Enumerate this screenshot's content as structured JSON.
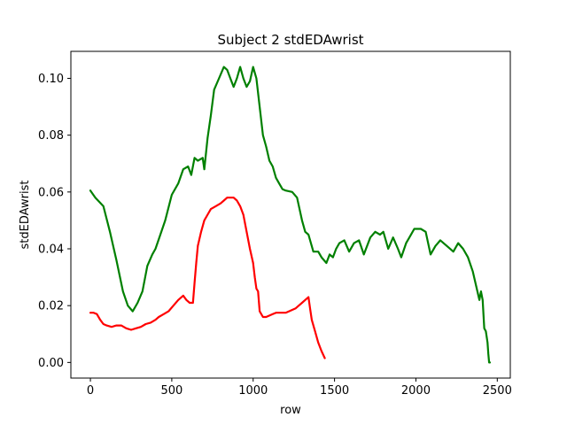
{
  "chart_data": {
    "type": "line",
    "title": "Subject 2 stdEDAwrist",
    "xlabel": "row",
    "ylabel": "stdEDAwrist",
    "xlim": [
      -120,
      2580
    ],
    "ylim": [
      -0.0055,
      0.1095
    ],
    "xticks": [
      0,
      500,
      1000,
      1500,
      2000,
      2500
    ],
    "xtick_labels": [
      "0",
      "500",
      "1000",
      "1500",
      "2000",
      "2500"
    ],
    "yticks": [
      0.0,
      0.02,
      0.04,
      0.06,
      0.08,
      0.1
    ],
    "ytick_labels": [
      "0.00",
      "0.02",
      "0.04",
      "0.06",
      "0.08",
      "0.10"
    ],
    "grid": false,
    "legend": "none",
    "series": [
      {
        "color": "#008000",
        "x": [
          0,
          30,
          80,
          120,
          160,
          200,
          230,
          260,
          290,
          320,
          350,
          380,
          400,
          430,
          460,
          500,
          540,
          570,
          600,
          620,
          640,
          660,
          690,
          700,
          720,
          740,
          760,
          790,
          820,
          840,
          860,
          880,
          900,
          920,
          940,
          960,
          980,
          1000,
          1020,
          1040,
          1060,
          1080,
          1100,
          1120,
          1140,
          1160,
          1180,
          1200,
          1240,
          1270,
          1300,
          1320,
          1340,
          1370,
          1400,
          1420,
          1450,
          1470,
          1490,
          1510,
          1530,
          1560,
          1590,
          1620,
          1650,
          1680,
          1720,
          1750,
          1780,
          1800,
          1830,
          1860,
          1890,
          1910,
          1940,
          1960,
          1990,
          2030,
          2060,
          2090,
          2120,
          2150,
          2190,
          2230,
          2260,
          2290,
          2320,
          2350,
          2370,
          2390,
          2400,
          2410,
          2420,
          2430,
          2440,
          2445,
          2450,
          2455
        ],
        "y": [
          0.0605,
          0.058,
          0.055,
          0.046,
          0.036,
          0.025,
          0.02,
          0.018,
          0.021,
          0.025,
          0.034,
          0.038,
          0.04,
          0.045,
          0.05,
          0.059,
          0.063,
          0.068,
          0.069,
          0.066,
          0.072,
          0.071,
          0.072,
          0.068,
          0.079,
          0.087,
          0.096,
          0.1,
          0.104,
          0.103,
          0.1,
          0.097,
          0.1,
          0.104,
          0.1,
          0.097,
          0.099,
          0.104,
          0.1,
          0.09,
          0.08,
          0.076,
          0.071,
          0.069,
          0.065,
          0.063,
          0.061,
          0.0605,
          0.06,
          0.058,
          0.05,
          0.046,
          0.045,
          0.039,
          0.039,
          0.037,
          0.035,
          0.038,
          0.037,
          0.04,
          0.042,
          0.043,
          0.039,
          0.042,
          0.043,
          0.038,
          0.044,
          0.046,
          0.045,
          0.046,
          0.04,
          0.044,
          0.04,
          0.037,
          0.042,
          0.044,
          0.047,
          0.047,
          0.046,
          0.038,
          0.041,
          0.043,
          0.041,
          0.039,
          0.042,
          0.04,
          0.037,
          0.032,
          0.027,
          0.022,
          0.025,
          0.022,
          0.012,
          0.011,
          0.007,
          0.003,
          0.0,
          0.0
        ]
      },
      {
        "color": "#ff0000",
        "x": [
          0,
          20,
          40,
          60,
          80,
          100,
          130,
          160,
          190,
          220,
          250,
          280,
          310,
          340,
          370,
          400,
          420,
          450,
          480,
          510,
          540,
          570,
          590,
          610,
          630,
          640,
          650,
          660,
          680,
          700,
          720,
          740,
          770,
          800,
          820,
          840,
          860,
          880,
          900,
          920,
          940,
          960,
          980,
          1000,
          1010,
          1020,
          1030,
          1040,
          1060,
          1080,
          1100,
          1120,
          1140,
          1160,
          1180,
          1200,
          1220,
          1240,
          1260,
          1280,
          1300,
          1320,
          1340,
          1350,
          1360,
          1380,
          1400,
          1420,
          1440
        ],
        "y": [
          0.0175,
          0.0175,
          0.017,
          0.015,
          0.0135,
          0.013,
          0.0125,
          0.013,
          0.013,
          0.012,
          0.0115,
          0.012,
          0.0125,
          0.0135,
          0.014,
          0.015,
          0.016,
          0.017,
          0.018,
          0.02,
          0.022,
          0.0235,
          0.022,
          0.021,
          0.021,
          0.028,
          0.035,
          0.041,
          0.046,
          0.05,
          0.052,
          0.054,
          0.055,
          0.056,
          0.057,
          0.058,
          0.058,
          0.058,
          0.057,
          0.055,
          0.052,
          0.046,
          0.04,
          0.035,
          0.03,
          0.026,
          0.025,
          0.018,
          0.016,
          0.016,
          0.0165,
          0.017,
          0.0175,
          0.0175,
          0.0175,
          0.0175,
          0.018,
          0.0185,
          0.019,
          0.02,
          0.021,
          0.022,
          0.023,
          0.019,
          0.015,
          0.011,
          0.007,
          0.004,
          0.0015
        ]
      }
    ]
  }
}
